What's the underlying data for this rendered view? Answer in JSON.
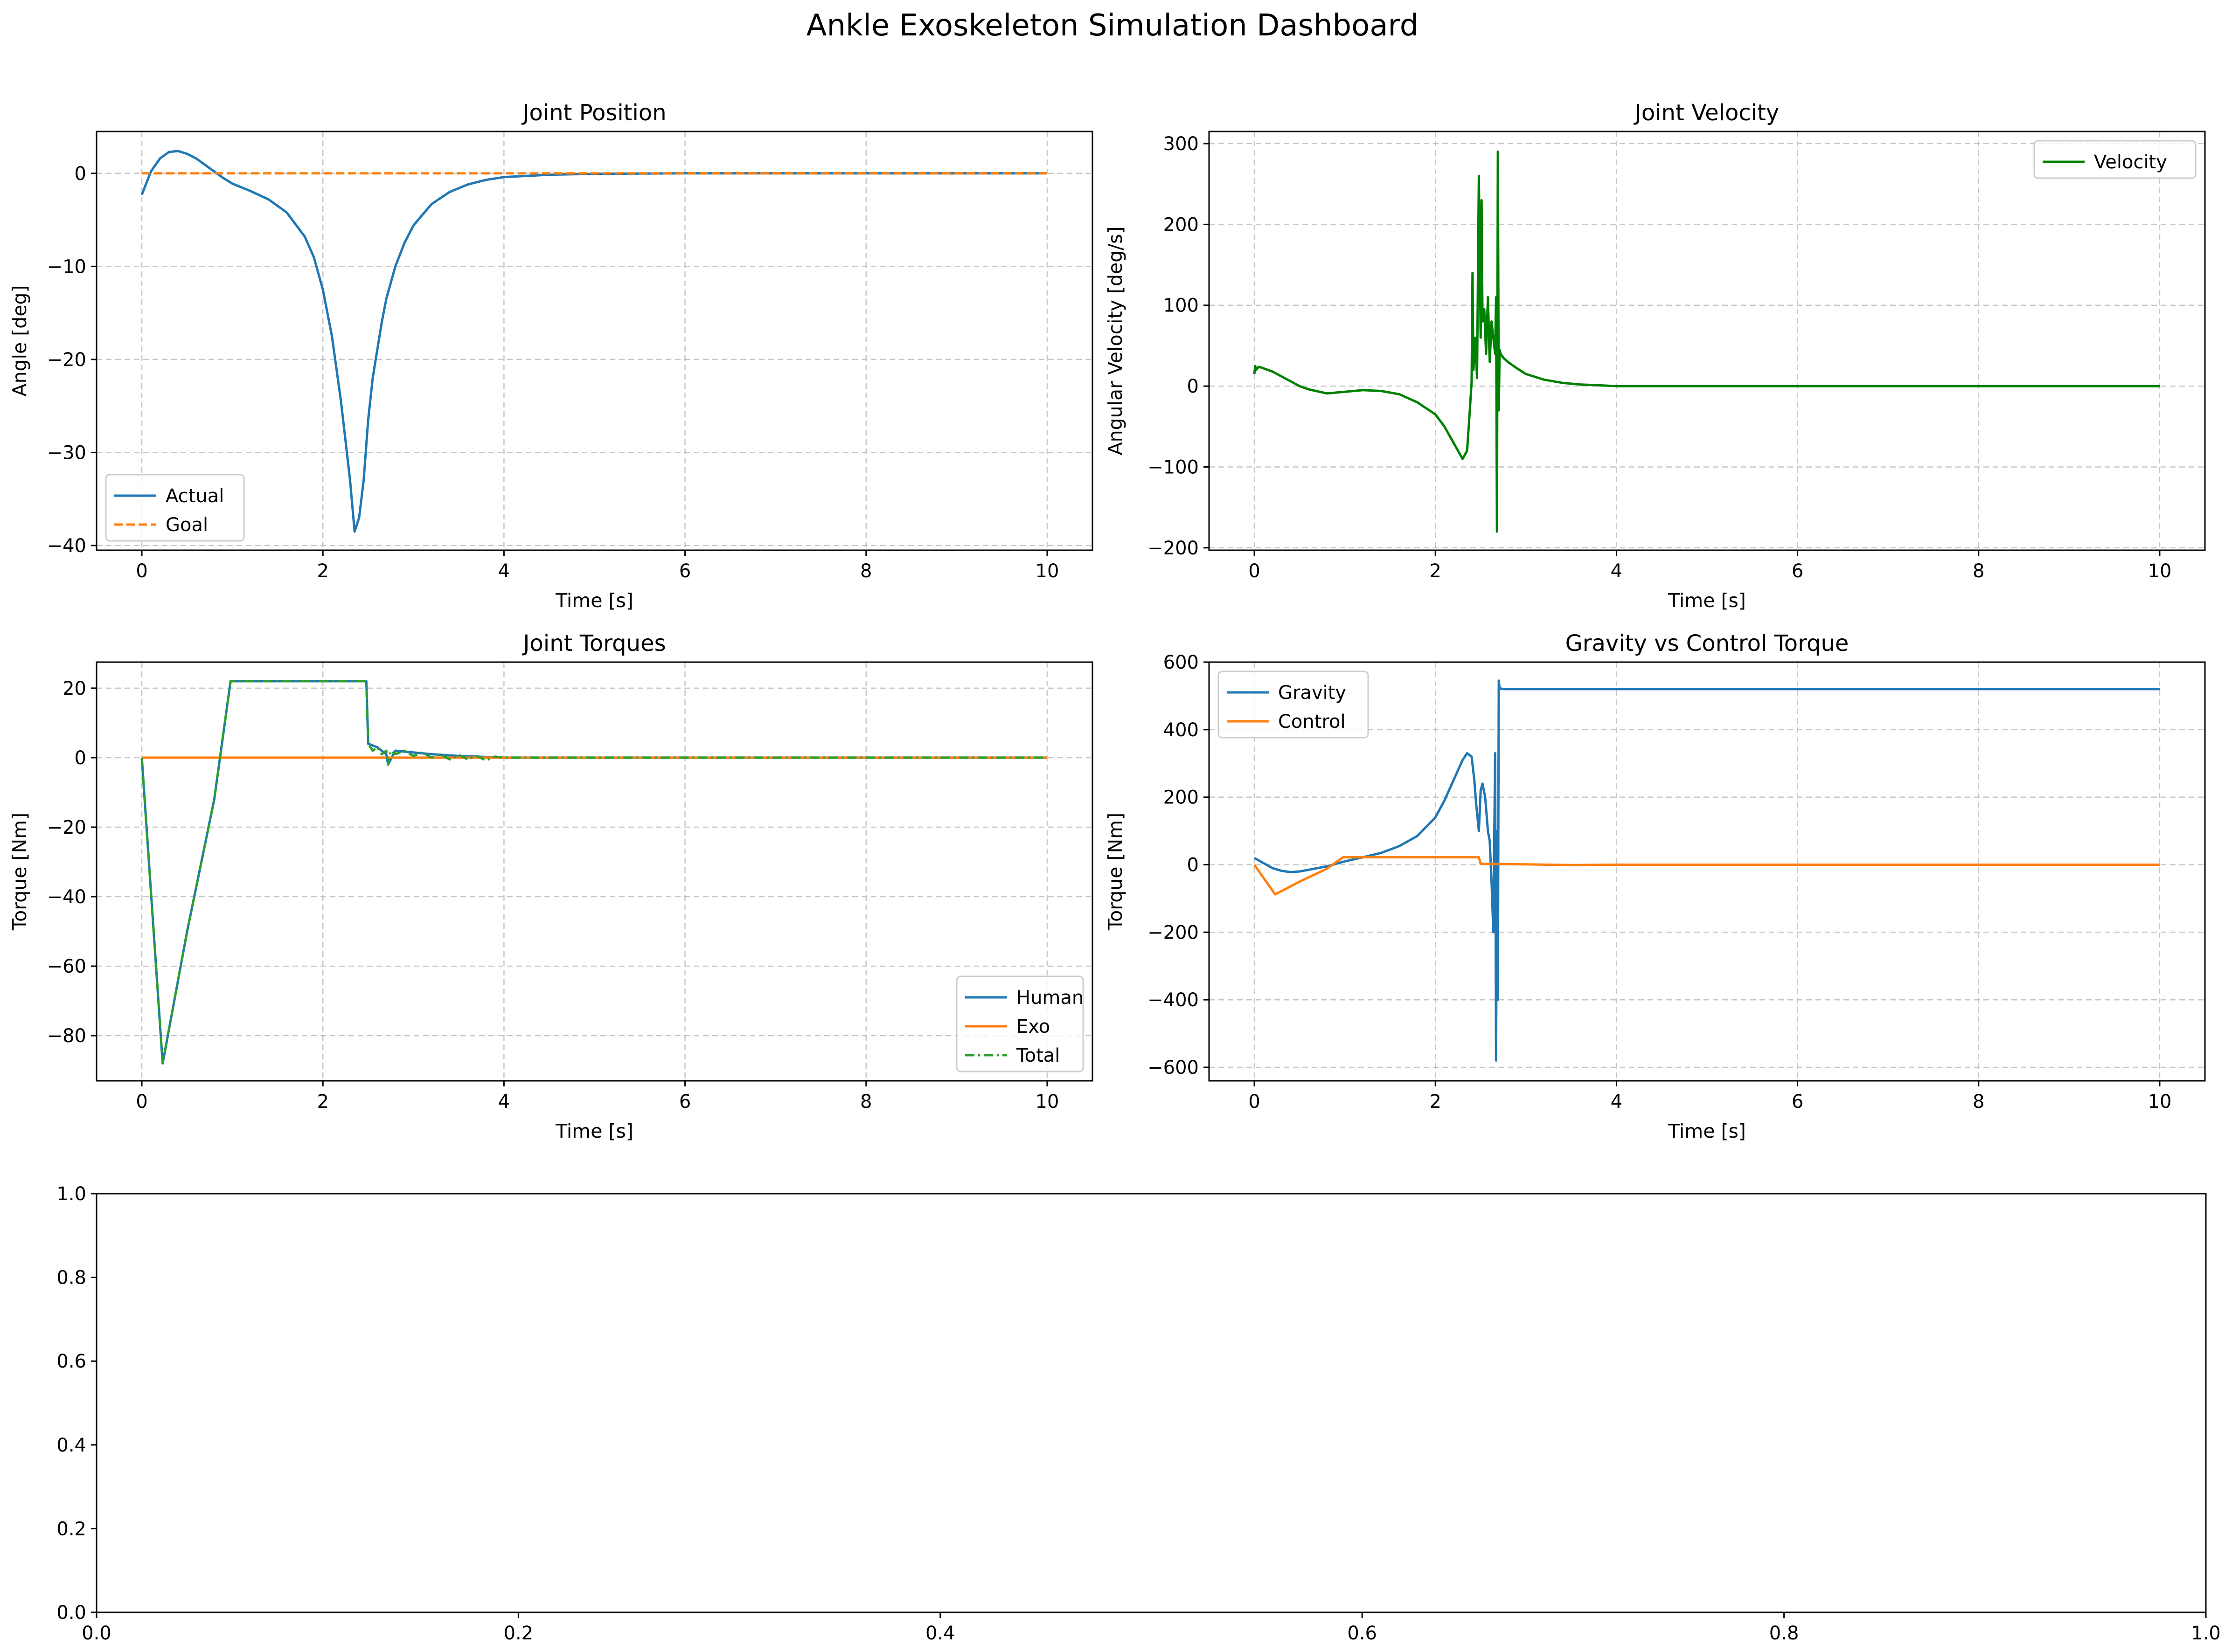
{
  "title": "Ankle Exoskeleton Simulation Dashboard",
  "colors": {
    "blue": "#1f77b4",
    "orange": "#ff7f0e",
    "green": "#2ca02c",
    "darkgreen": "#008000",
    "grid": "#b0b0b0"
  },
  "chart_data": [
    {
      "type": "line",
      "title": "Joint Position",
      "xlabel": "Time [s]",
      "ylabel": "Angle [deg]",
      "xlim": [
        -0.5,
        10.5
      ],
      "ylim": [
        -40.5,
        4.5
      ],
      "xticks": [
        0,
        2,
        4,
        6,
        8,
        10
      ],
      "yticks": [
        -40,
        -30,
        -20,
        -10,
        0
      ],
      "grid": true,
      "legend": "lower left",
      "series": [
        {
          "name": "Actual",
          "color": "#1f77b4",
          "dash": "solid",
          "x": [
            0,
            0.1,
            0.2,
            0.3,
            0.4,
            0.5,
            0.6,
            0.7,
            0.8,
            0.9,
            1.0,
            1.2,
            1.4,
            1.6,
            1.8,
            1.9,
            2.0,
            2.1,
            2.2,
            2.3,
            2.35,
            2.4,
            2.45,
            2.5,
            2.55,
            2.6,
            2.65,
            2.7,
            2.8,
            2.9,
            3.0,
            3.2,
            3.4,
            3.6,
            3.8,
            4.0,
            4.5,
            5.0,
            6.0,
            7.0,
            8.0,
            9.0,
            10.0
          ],
          "y": [
            -2.3,
            0.2,
            1.6,
            2.3,
            2.4,
            2.1,
            1.6,
            0.9,
            0.2,
            -0.5,
            -1.1,
            -1.9,
            -2.8,
            -4.2,
            -6.8,
            -9.0,
            -12.5,
            -17.5,
            -24.5,
            -33.0,
            -38.5,
            -37.0,
            -33.0,
            -26.5,
            -22.0,
            -19.0,
            -16.0,
            -13.5,
            -10.0,
            -7.5,
            -5.6,
            -3.3,
            -2.0,
            -1.2,
            -0.7,
            -0.4,
            -0.15,
            -0.05,
            0,
            0,
            0,
            0,
            0
          ]
        },
        {
          "name": "Goal",
          "color": "#ff7f0e",
          "dash": "dashed",
          "x": [
            0,
            10
          ],
          "y": [
            0,
            0
          ]
        }
      ]
    },
    {
      "type": "line",
      "title": "Joint Velocity",
      "xlabel": "Time [s]",
      "ylabel": "Angular Velocity [deg/s]",
      "xlim": [
        -0.5,
        10.5
      ],
      "ylim": [
        -203,
        315
      ],
      "xticks": [
        0,
        2,
        4,
        6,
        8,
        10
      ],
      "yticks": [
        -200,
        -100,
        0,
        100,
        200,
        300
      ],
      "grid": true,
      "legend": "upper right",
      "series": [
        {
          "name": "Velocity",
          "color": "#008000",
          "dash": "solid",
          "x": [
            0,
            0.01,
            0.02,
            0.05,
            0.1,
            0.2,
            0.3,
            0.4,
            0.5,
            0.6,
            0.8,
            1.0,
            1.2,
            1.4,
            1.6,
            1.8,
            2.0,
            2.1,
            2.2,
            2.3,
            2.35,
            2.38,
            2.4,
            2.41,
            2.42,
            2.44,
            2.46,
            2.48,
            2.5,
            2.51,
            2.52,
            2.54,
            2.56,
            2.58,
            2.6,
            2.62,
            2.64,
            2.66,
            2.67,
            2.68,
            2.69,
            2.7,
            2.71,
            2.72,
            2.75,
            2.8,
            2.9,
            3.0,
            3.2,
            3.4,
            3.6,
            3.8,
            4.0,
            4.5,
            5.0,
            6.0,
            8.0,
            10.0
          ],
          "y": [
            15,
            25,
            20,
            24,
            22,
            18,
            12,
            6,
            0,
            -4,
            -9,
            -7,
            -5,
            -6,
            -10,
            -20,
            -35,
            -50,
            -70,
            -90,
            -80,
            -30,
            5,
            140,
            20,
            60,
            10,
            260,
            60,
            230,
            80,
            95,
            40,
            110,
            30,
            80,
            60,
            40,
            110,
            -180,
            290,
            -30,
            45,
            40,
            35,
            30,
            22,
            15,
            8,
            4,
            2,
            1,
            0,
            0,
            0,
            0,
            0,
            0
          ]
        }
      ]
    },
    {
      "type": "line",
      "title": "Joint Torques",
      "xlabel": "Time [s]",
      "ylabel": "Torque [Nm]",
      "xlim": [
        -0.5,
        10.5
      ],
      "ylim": [
        -93,
        27.5
      ],
      "xticks": [
        0,
        2,
        4,
        6,
        8,
        10
      ],
      "yticks": [
        -80,
        -60,
        -40,
        -20,
        0,
        20
      ],
      "grid": true,
      "legend": "lower right",
      "series": [
        {
          "name": "Human",
          "color": "#1f77b4",
          "dash": "solid",
          "x": [
            0,
            0.23,
            0.5,
            0.8,
            0.98,
            1.5,
            2.0,
            2.45,
            2.48,
            2.5,
            2.6,
            2.7,
            2.72,
            2.8,
            3.0,
            3.2,
            3.5,
            3.8,
            4.0,
            4.5,
            5.0,
            6.0,
            8.0,
            10.0
          ],
          "y": [
            0,
            -88,
            -50,
            -12,
            22,
            22,
            22,
            22,
            22,
            4,
            3,
            1,
            -2,
            2,
            1.5,
            1,
            0.5,
            0.2,
            0,
            0,
            0,
            0,
            0,
            0
          ]
        },
        {
          "name": "Exo",
          "color": "#ff7f0e",
          "dash": "solid",
          "x": [
            0,
            10
          ],
          "y": [
            0,
            0
          ]
        },
        {
          "name": "Total",
          "color": "#2ca02c",
          "dash": "dashdot",
          "x": [
            0,
            0.23,
            0.5,
            0.8,
            0.98,
            1.5,
            2.0,
            2.45,
            2.48,
            2.5,
            2.55,
            2.6,
            2.65,
            2.7,
            2.72,
            2.75,
            2.8,
            2.9,
            3.0,
            3.1,
            3.2,
            3.3,
            3.4,
            3.5,
            3.6,
            3.7,
            3.8,
            3.9,
            4.0,
            4.5,
            5.0,
            6.0,
            8.0,
            10.0
          ],
          "y": [
            0,
            -88,
            -50,
            -12,
            22,
            22,
            22,
            22,
            22,
            4,
            2,
            3,
            1,
            2,
            -2,
            2,
            1,
            2,
            0.5,
            1.5,
            0,
            1,
            -0.5,
            0.8,
            -0.5,
            0.5,
            -0.8,
            0.3,
            0,
            0,
            0,
            0,
            0,
            0
          ]
        }
      ]
    },
    {
      "type": "line",
      "title": "Gravity vs Control Torque",
      "xlabel": "Time [s]",
      "ylabel": "Torque [Nm]",
      "xlim": [
        -0.5,
        10.5
      ],
      "ylim": [
        -640,
        600
      ],
      "xticks": [
        0,
        2,
        4,
        6,
        8,
        10
      ],
      "yticks": [
        -600,
        -400,
        -200,
        0,
        200,
        400,
        600
      ],
      "grid": true,
      "legend": "upper left",
      "series": [
        {
          "name": "Gravity",
          "color": "#1f77b4",
          "dash": "solid",
          "x": [
            0,
            0.1,
            0.2,
            0.3,
            0.4,
            0.5,
            0.6,
            0.8,
            1.0,
            1.2,
            1.4,
            1.6,
            1.8,
            2.0,
            2.1,
            2.2,
            2.3,
            2.35,
            2.4,
            2.43,
            2.45,
            2.48,
            2.5,
            2.52,
            2.55,
            2.58,
            2.6,
            2.62,
            2.64,
            2.66,
            2.67,
            2.68,
            2.69,
            2.7,
            2.71,
            2.72,
            2.75,
            3.0,
            4.0,
            6.0,
            8.0,
            10.0
          ],
          "y": [
            20,
            5,
            -10,
            -18,
            -22,
            -20,
            -15,
            -5,
            10,
            22,
            35,
            55,
            85,
            140,
            190,
            250,
            310,
            330,
            320,
            250,
            180,
            100,
            220,
            240,
            200,
            100,
            70,
            -50,
            -200,
            330,
            -580,
            100,
            -400,
            545,
            520,
            522,
            520,
            520,
            520,
            520,
            520,
            520
          ]
        },
        {
          "name": "Control",
          "color": "#ff7f0e",
          "dash": "solid",
          "x": [
            0,
            0.23,
            0.5,
            0.8,
            0.98,
            1.5,
            2.0,
            2.45,
            2.48,
            2.5,
            2.7,
            3.0,
            3.5,
            4.0,
            6.0,
            8.0,
            10.0
          ],
          "y": [
            0,
            -88,
            -50,
            -12,
            22,
            22,
            22,
            22,
            22,
            3,
            2,
            1,
            -1,
            0,
            0,
            0,
            0
          ]
        }
      ]
    },
    {
      "type": "line",
      "title": "",
      "xlabel": "",
      "ylabel": "",
      "xlim": [
        0,
        1
      ],
      "ylim": [
        0,
        1
      ],
      "xticks": [
        0.0,
        0.2,
        0.4,
        0.6,
        0.8,
        1.0
      ],
      "yticks": [
        0.0,
        0.2,
        0.4,
        0.6,
        0.8,
        1.0
      ],
      "xticklabels": [
        "0.0",
        "0.2",
        "0.4",
        "0.6",
        "0.8",
        "1.0"
      ],
      "yticklabels": [
        "0.0",
        "0.2",
        "0.4",
        "0.6",
        "0.8",
        "1.0"
      ],
      "grid": false,
      "legend": "none",
      "series": []
    }
  ]
}
